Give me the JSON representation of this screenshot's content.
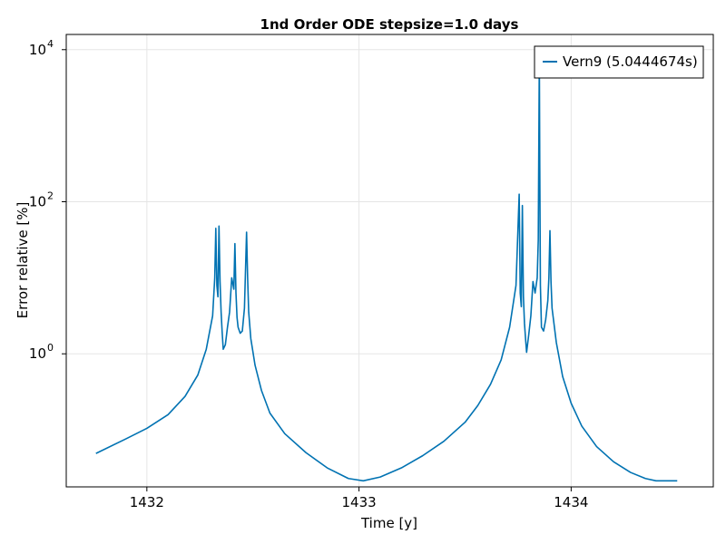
{
  "chart_data": {
    "type": "line",
    "title": "1nd Order ODE stepsize=1.0 days",
    "xlabel": "Time [y]",
    "ylabel": "Error relative [%]",
    "xlim": [
      1431.62,
      1434.67
    ],
    "ylim_log10": [
      -1.75,
      4.2
    ],
    "y_scale": "log",
    "grid": true,
    "legend_position": "top-right",
    "x_ticks": [
      1432,
      1433,
      1434
    ],
    "x_tick_labels": [
      "1432",
      "1433",
      "1434"
    ],
    "y_ticks_log10": [
      0,
      2,
      4
    ],
    "y_tick_base": "10",
    "y_tick_exponents": [
      "0",
      "2",
      "4"
    ],
    "series": [
      {
        "name": "Vern9 (5.0444674s)",
        "color": "#0072b2",
        "x": [
          1431.76,
          1431.9,
          1432.0,
          1432.1,
          1432.18,
          1432.24,
          1432.28,
          1432.31,
          1432.32,
          1432.325,
          1432.33,
          1432.335,
          1432.34,
          1432.345,
          1432.35,
          1432.355,
          1432.36,
          1432.37,
          1432.38,
          1432.39,
          1432.4,
          1432.41,
          1432.415,
          1432.42,
          1432.425,
          1432.43,
          1432.44,
          1432.45,
          1432.46,
          1432.47,
          1432.475,
          1432.48,
          1432.49,
          1432.51,
          1432.54,
          1432.58,
          1432.65,
          1432.75,
          1432.85,
          1432.95,
          1433.02,
          1433.1,
          1433.2,
          1433.3,
          1433.4,
          1433.5,
          1433.56,
          1433.62,
          1433.67,
          1433.71,
          1433.74,
          1433.755,
          1433.76,
          1433.765,
          1433.77,
          1433.775,
          1433.78,
          1433.785,
          1433.79,
          1433.8,
          1433.81,
          1433.82,
          1433.83,
          1433.84,
          1433.845,
          1433.85,
          1433.852,
          1433.855,
          1433.86,
          1433.87,
          1433.88,
          1433.89,
          1433.895,
          1433.9,
          1433.905,
          1433.91,
          1433.93,
          1433.96,
          1434.0,
          1434.05,
          1434.12,
          1434.2,
          1434.28,
          1434.35,
          1434.4,
          1434.45,
          1434.5
        ],
        "y_log10": [
          -1.31,
          -1.12,
          -0.98,
          -0.8,
          -0.56,
          -0.28,
          0.06,
          0.5,
          1.0,
          1.65,
          0.9,
          0.75,
          1.68,
          0.95,
          0.55,
          0.28,
          0.06,
          0.12,
          0.35,
          0.55,
          1.0,
          0.85,
          1.45,
          0.8,
          0.48,
          0.35,
          0.27,
          0.3,
          0.6,
          1.6,
          1.0,
          0.55,
          0.2,
          -0.15,
          -0.48,
          -0.78,
          -1.05,
          -1.3,
          -1.5,
          -1.64,
          -1.67,
          -1.62,
          -1.5,
          -1.34,
          -1.15,
          -0.9,
          -0.68,
          -0.4,
          -0.08,
          0.35,
          0.9,
          2.1,
          0.8,
          0.62,
          1.95,
          0.75,
          0.4,
          0.2,
          0.02,
          0.25,
          0.5,
          0.95,
          0.8,
          1.0,
          1.5,
          3.9,
          2.5,
          0.9,
          0.35,
          0.3,
          0.45,
          0.7,
          1.0,
          1.62,
          0.95,
          0.6,
          0.15,
          -0.3,
          -0.65,
          -0.95,
          -1.22,
          -1.42,
          -1.56,
          -1.64,
          -1.67,
          -1.67,
          -1.67
        ]
      }
    ]
  }
}
